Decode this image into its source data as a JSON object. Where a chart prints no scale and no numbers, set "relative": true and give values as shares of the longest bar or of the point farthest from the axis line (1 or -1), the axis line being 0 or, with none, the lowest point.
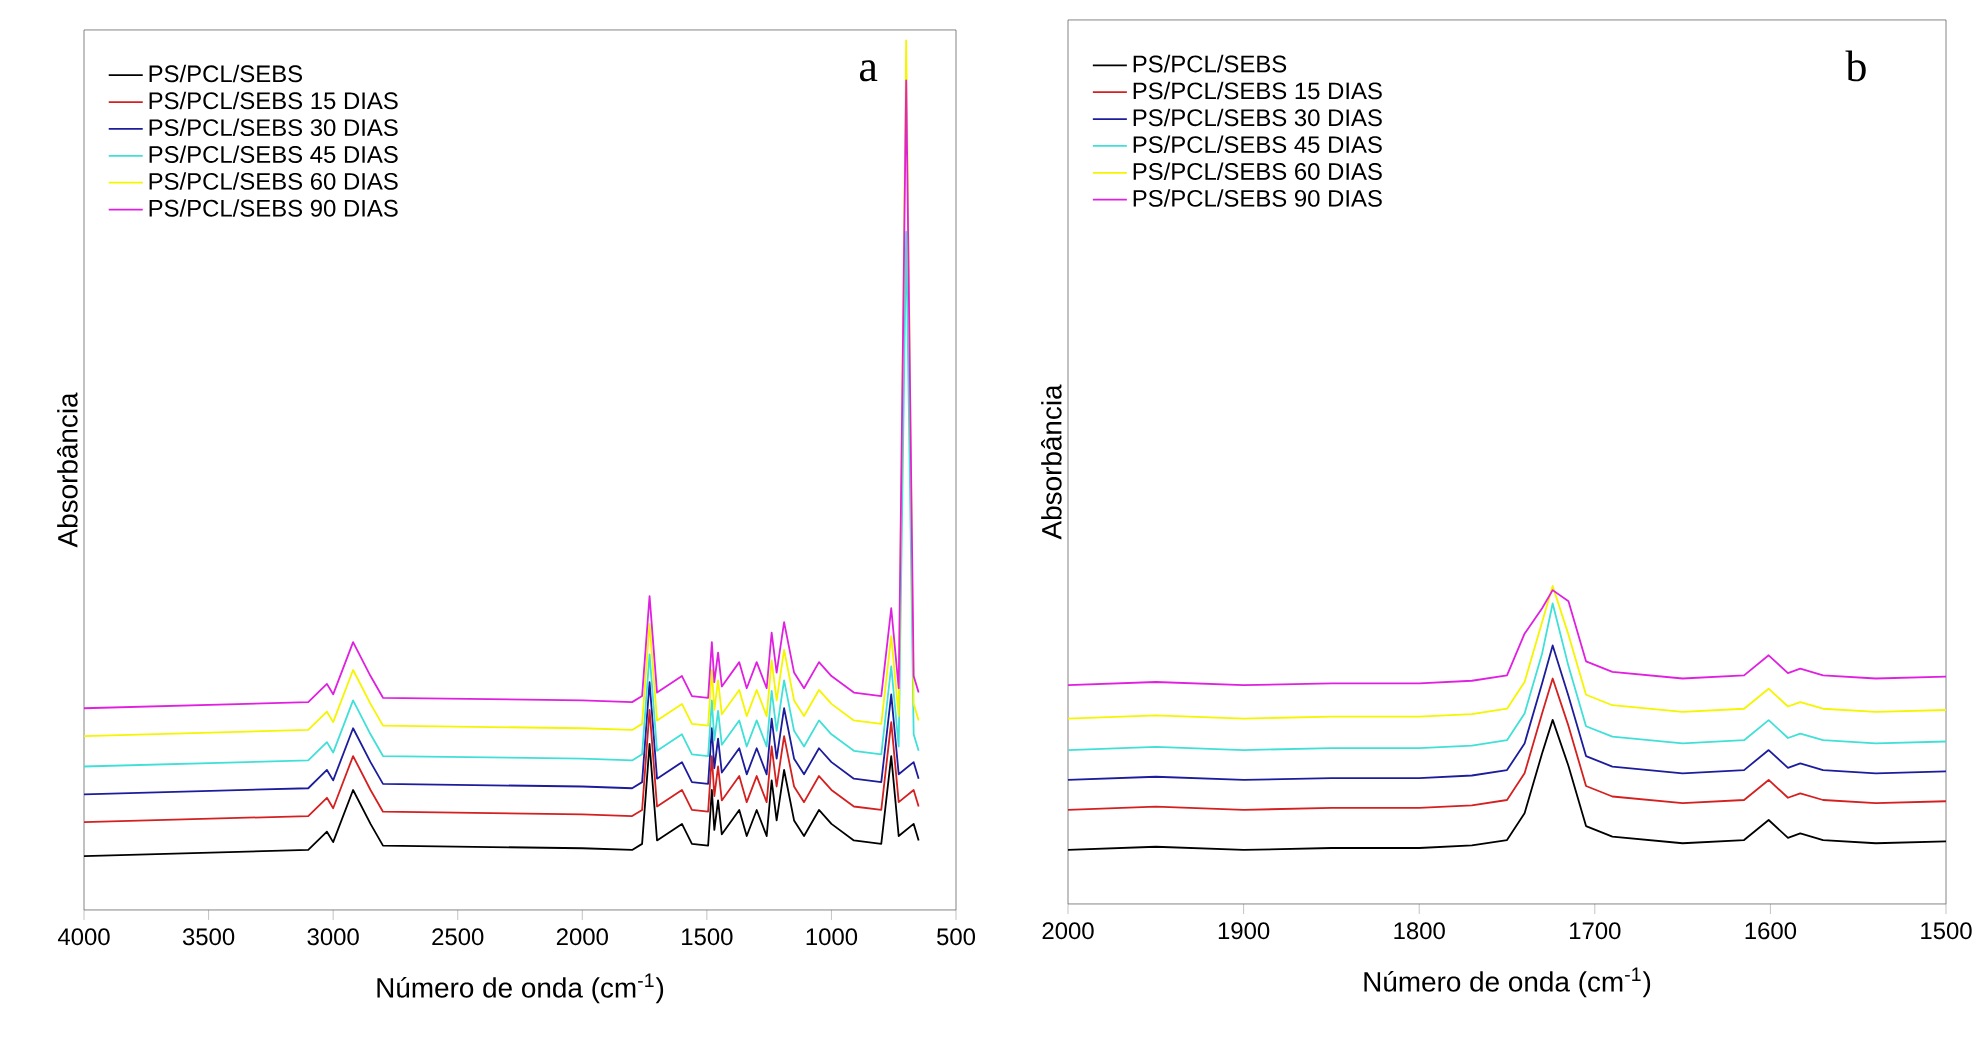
{
  "chart_data": [
    {
      "type": "line",
      "relative": true,
      "xlabel": "Número de onda (cm$^{-1}$)",
      "ylabel": "Absorbância",
      "annotations": [
        "a"
      ],
      "legend": "top left",
      "xlim": [
        4000,
        500
      ],
      "xticks": [
        4000,
        3500,
        3000,
        2500,
        2000,
        1500,
        1000,
        500
      ],
      "x": [
        4000,
        3100,
        3025,
        3000,
        2920,
        2850,
        2800,
        2000,
        1800,
        1760,
        1730,
        1700,
        1600,
        1560,
        1495,
        1480,
        1470,
        1455,
        1440,
        1370,
        1340,
        1300,
        1260,
        1240,
        1220,
        1190,
        1150,
        1110,
        1050,
        1000,
        910,
        800,
        760,
        730,
        700,
        670,
        650
      ],
      "series": [
        {
          "name": "PS/PCL/SEBS",
          "color": "#000000",
          "values": [
            0.062,
            0.069,
            0.09,
            0.078,
            0.138,
            0.099,
            0.074,
            0.071,
            0.069,
            0.076,
            0.191,
            0.08,
            0.099,
            0.076,
            0.074,
            0.138,
            0.092,
            0.126,
            0.087,
            0.115,
            0.085,
            0.115,
            0.085,
            0.149,
            0.103,
            0.161,
            0.103,
            0.085,
            0.115,
            0.099,
            0.08,
            0.076,
            0.177,
            0.085,
            null,
            0.099,
            0.08
          ]
        },
        {
          "name": "PS/PCL/SEBS 15 DIAS",
          "color": "#d42020",
          "values": [
            0.101,
            0.108,
            0.129,
            0.117,
            0.177,
            0.138,
            0.113,
            0.11,
            0.108,
            0.115,
            0.23,
            0.119,
            0.138,
            0.115,
            0.113,
            0.177,
            0.131,
            0.165,
            0.126,
            0.154,
            0.124,
            0.154,
            0.124,
            0.188,
            0.142,
            0.2,
            0.142,
            0.124,
            0.154,
            0.138,
            0.119,
            0.115,
            0.216,
            0.124,
            null,
            0.138,
            0.119
          ]
        },
        {
          "name": "PS/PCL/SEBS 30 DIAS",
          "color": "#1c1c9c",
          "values": [
            0.133,
            0.14,
            0.161,
            0.149,
            0.209,
            0.17,
            0.145,
            0.142,
            0.14,
            0.147,
            0.262,
            0.151,
            0.17,
            0.147,
            0.145,
            0.209,
            0.163,
            0.197,
            0.158,
            0.186,
            0.156,
            0.186,
            0.156,
            0.22,
            0.174,
            0.232,
            0.174,
            0.156,
            0.186,
            0.17,
            0.151,
            0.147,
            0.248,
            0.156,
            null,
            0.17,
            0.151
          ]
        },
        {
          "name": "PS/PCL/SEBS 45 DIAS",
          "color": "#40e0d8",
          "values": [
            0.165,
            0.172,
            0.193,
            0.181,
            0.241,
            0.202,
            0.177,
            0.174,
            0.172,
            0.179,
            0.294,
            0.183,
            0.202,
            0.179,
            0.177,
            0.241,
            0.195,
            0.229,
            0.19,
            0.218,
            0.188,
            0.218,
            0.188,
            0.252,
            0.206,
            0.264,
            0.206,
            0.188,
            0.218,
            0.202,
            0.183,
            0.179,
            0.28,
            0.188,
            0.78,
            0.202,
            0.183
          ]
        },
        {
          "name": "PS/PCL/SEBS 60 DIAS",
          "color": "#f5f500",
          "values": [
            0.2,
            0.207,
            0.228,
            0.216,
            0.276,
            0.237,
            0.212,
            0.209,
            0.207,
            0.214,
            0.329,
            0.218,
            0.237,
            0.214,
            0.212,
            0.276,
            0.23,
            0.264,
            0.225,
            0.253,
            0.223,
            0.253,
            0.223,
            0.287,
            0.241,
            0.299,
            0.241,
            0.223,
            0.253,
            0.237,
            0.218,
            0.214,
            0.315,
            0.223,
            1,
            0.237,
            0.218
          ]
        },
        {
          "name": "PS/PCL/SEBS 90 DIAS",
          "color": "#e020e0",
          "values": [
            0.232,
            0.239,
            0.26,
            0.248,
            0.308,
            0.269,
            0.244,
            0.241,
            0.239,
            0.246,
            0.361,
            0.25,
            0.269,
            0.246,
            0.244,
            0.308,
            0.262,
            0.296,
            0.257,
            0.285,
            0.255,
            0.285,
            0.255,
            0.319,
            0.273,
            0.331,
            0.273,
            0.255,
            0.285,
            0.269,
            0.25,
            0.246,
            0.347,
            0.255,
            0.954,
            0.269,
            0.25
          ]
        }
      ]
    },
    {
      "type": "line",
      "relative": true,
      "xlabel": "Número de onda (cm$^{-1}$)",
      "ylabel": "Absorbância",
      "annotations": [
        "b"
      ],
      "legend": "top left",
      "xlim": [
        2000,
        1500
      ],
      "xticks": [
        2000,
        1900,
        1800,
        1700,
        1600,
        1500
      ],
      "x": [
        2000,
        1950,
        1900,
        1850,
        1800,
        1770,
        1750,
        1740,
        1730,
        1724,
        1715,
        1705,
        1690,
        1650,
        1615,
        1601,
        1590,
        1583,
        1570,
        1540,
        1500
      ],
      "series": [
        {
          "name": "PS/PCL/SEBS",
          "color": "#000000",
          "values": [
            0.17,
            0.18,
            0.17,
            0.176,
            0.176,
            0.184,
            0.201,
            0.285,
            0.474,
            0.579,
            0.434,
            0.245,
            0.212,
            0.191,
            0.201,
            0.264,
            0.208,
            0.222,
            0.201,
            0.191,
            0.197
          ]
        },
        {
          "name": "PS/PCL/SEBS 15 DIAS",
          "color": "#d42020",
          "values": [
            0.296,
            0.306,
            0.296,
            0.302,
            0.302,
            0.31,
            0.327,
            0.411,
            0.6,
            0.709,
            0.56,
            0.371,
            0.338,
            0.317,
            0.327,
            0.39,
            0.334,
            0.348,
            0.327,
            0.317,
            0.323
          ]
        },
        {
          "name": "PS/PCL/SEBS 30 DIAS",
          "color": "#1c1c9c",
          "values": [
            0.39,
            0.4,
            0.39,
            0.396,
            0.396,
            0.404,
            0.421,
            0.505,
            0.694,
            0.813,
            0.654,
            0.465,
            0.432,
            0.411,
            0.421,
            0.484,
            0.428,
            0.442,
            0.421,
            0.411,
            0.417
          ]
        },
        {
          "name": "PS/PCL/SEBS 45 DIAS",
          "color": "#40e0d8",
          "values": [
            0.484,
            0.494,
            0.484,
            0.49,
            0.49,
            0.498,
            0.515,
            0.599,
            0.788,
            0.945,
            0.748,
            0.559,
            0.526,
            0.505,
            0.515,
            0.578,
            0.522,
            0.536,
            0.515,
            0.505,
            0.511
          ]
        },
        {
          "name": "PS/PCL/SEBS 60 DIAS",
          "color": "#f5f500",
          "values": [
            0.583,
            0.593,
            0.583,
            0.589,
            0.589,
            0.597,
            0.614,
            0.698,
            0.887,
            1,
            0.847,
            0.658,
            0.625,
            0.604,
            0.614,
            0.677,
            0.621,
            0.635,
            0.614,
            0.604,
            0.61
          ]
        },
        {
          "name": "PS/PCL/SEBS 90 DIAS",
          "color": "#e020e0",
          "values": [
            0.688,
            0.698,
            0.688,
            0.694,
            0.694,
            0.702,
            0.719,
            0.85,
            0.93,
            0.987,
            0.952,
            0.763,
            0.73,
            0.709,
            0.719,
            0.782,
            0.726,
            0.74,
            0.719,
            0.709,
            0.715
          ]
        }
      ]
    }
  ]
}
